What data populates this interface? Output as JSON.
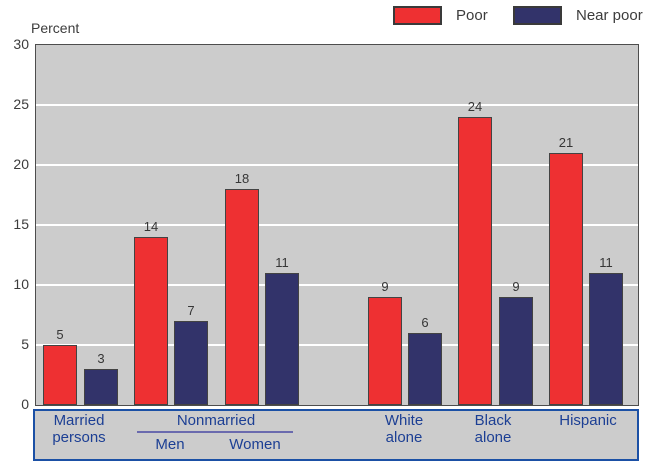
{
  "ylabel": "Percent",
  "legend": {
    "items": [
      {
        "label": "Poor",
        "color": "#ee3032"
      },
      {
        "label": "Near poor",
        "color": "#32336a"
      }
    ]
  },
  "xaxis_labels": {
    "married_line1": "Married",
    "married_line2": "persons",
    "nonmarried": "Nonmarried",
    "men": "Men",
    "women": "Women",
    "white_line1": "White",
    "white_line2": "alone",
    "black_line1": "Black",
    "black_line2": "alone",
    "hispanic": "Hispanic"
  },
  "chart_data": {
    "type": "bar",
    "title": "",
    "ylabel": "Percent",
    "xlabel": "",
    "ylim": [
      0,
      30
    ],
    "yticks": [
      0,
      5,
      10,
      15,
      20,
      25,
      30
    ],
    "grid": true,
    "gridline_color": "#ffffff",
    "plot_background": "#cccccc",
    "legend_position": "top-right",
    "series": [
      {
        "name": "Poor",
        "color": "#ee3032"
      },
      {
        "name": "Near poor",
        "color": "#32336a"
      }
    ],
    "categories": [
      "Married persons",
      "Nonmarried Men",
      "Nonmarried Women",
      "White alone",
      "Black alone",
      "Hispanic"
    ],
    "groups": [
      {
        "category": "Married persons",
        "poor": 5,
        "near_poor": 3
      },
      {
        "category": "Nonmarried Men",
        "poor": 14,
        "near_poor": 7
      },
      {
        "category": "Nonmarried Women",
        "poor": 18,
        "near_poor": 11
      },
      {
        "category": "White alone",
        "poor": 9,
        "near_poor": 6
      },
      {
        "category": "Black alone",
        "poor": 24,
        "near_poor": 9
      },
      {
        "category": "Hispanic",
        "poor": 21,
        "near_poor": 11
      }
    ]
  }
}
